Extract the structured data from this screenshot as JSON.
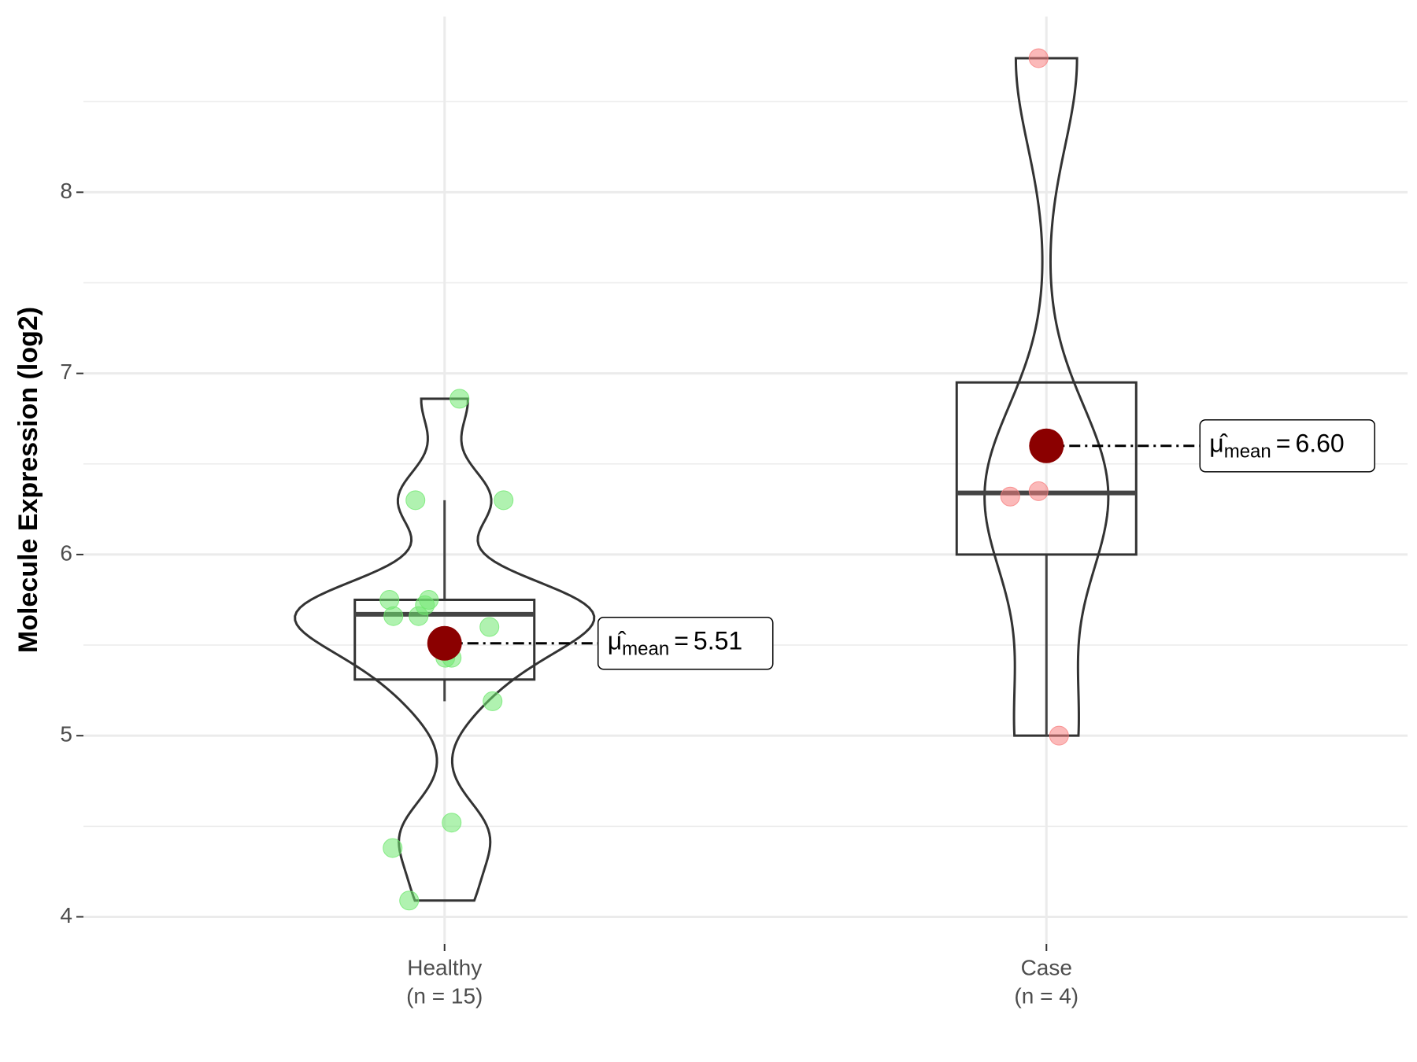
{
  "chart_data": {
    "type": "violin",
    "y_label": "Molecule Expression (log2)",
    "categories": [
      "Healthy",
      "Case"
    ],
    "n_labels": [
      "(n = 15)",
      "(n = 4)"
    ],
    "ylim": [
      3.85,
      8.97
    ],
    "yticks": [
      4,
      5,
      6,
      7,
      8
    ],
    "minor_yticks": [
      4.5,
      5.5,
      6.5,
      7.5,
      8.5
    ],
    "grid": true,
    "mean_symbol": "μ̂",
    "mean_subscript": "mean",
    "mean_equals": "=",
    "mean_color": "#8b0000",
    "series": [
      {
        "name": "Healthy",
        "color": "#6fe86f",
        "values": [
          6.86,
          6.3,
          6.3,
          5.75,
          5.75,
          5.66,
          5.66,
          5.72,
          5.6,
          5.43,
          5.43,
          5.19,
          4.52,
          4.38,
          4.09
        ],
        "q1": 5.31,
        "median": 5.67,
        "q3": 5.75,
        "whisker_low": 5.19,
        "whisker_high": 6.3,
        "mean": 5.51,
        "mean_label": "5.51"
      },
      {
        "name": "Case",
        "color": "#f77f7f",
        "values": [
          8.74,
          6.32,
          6.35,
          5.0
        ],
        "q1": 6.0,
        "median": 6.34,
        "q3": 6.95,
        "whisker_low": 5.0,
        "whisker_high": 6.95,
        "mean": 6.6,
        "mean_label": "6.60"
      }
    ]
  }
}
